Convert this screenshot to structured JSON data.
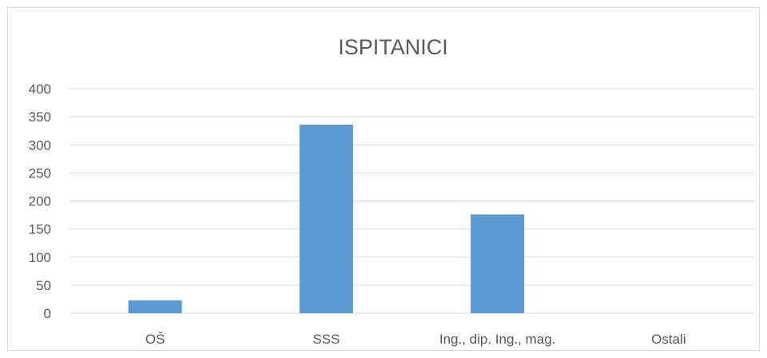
{
  "chart_data": {
    "type": "bar",
    "title": "ISPITANICI",
    "categories": [
      "OŠ",
      "SSS",
      "Ing., dip. Ing., mag.",
      "Ostali"
    ],
    "series": [
      {
        "values": [
          23,
          336,
          176,
          0
        ],
        "color": "#5b9bd5"
      }
    ],
    "ylim": [
      0,
      400
    ],
    "yticks": [
      0,
      50,
      100,
      150,
      200,
      250,
      300,
      350,
      400
    ],
    "grid": true,
    "legend": "none"
  }
}
